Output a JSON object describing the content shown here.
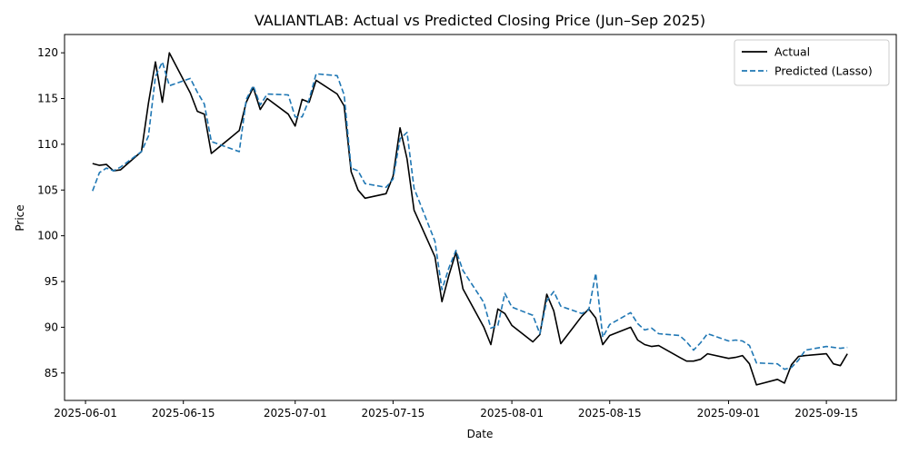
{
  "chart_data": {
    "type": "line",
    "title": "VALIANTLAB: Actual vs Predicted Closing Price (Jun–Sep 2025)",
    "xlabel": "Date",
    "ylabel": "Price",
    "xlim": [
      "2025-05-29",
      "2025-09-25"
    ],
    "ylim": [
      82,
      122
    ],
    "x_ticks": [
      "2025-06-01",
      "2025-06-15",
      "2025-07-01",
      "2025-07-15",
      "2025-08-01",
      "2025-08-15",
      "2025-09-01",
      "2025-09-15"
    ],
    "y_ticks": [
      85,
      90,
      95,
      100,
      105,
      110,
      115,
      120
    ],
    "grid": false,
    "legend": "top-right",
    "series": [
      {
        "name": "Actual",
        "color": "#000000",
        "dash": "solid",
        "x": [
          "2025-06-02",
          "2025-06-03",
          "2025-06-04",
          "2025-06-05",
          "2025-06-06",
          "2025-06-09",
          "2025-06-10",
          "2025-06-11",
          "2025-06-12",
          "2025-06-13",
          "2025-06-16",
          "2025-06-17",
          "2025-06-18",
          "2025-06-19",
          "2025-06-23",
          "2025-06-24",
          "2025-06-25",
          "2025-06-26",
          "2025-06-27",
          "2025-06-30",
          "2025-07-01",
          "2025-07-02",
          "2025-07-03",
          "2025-07-04",
          "2025-07-07",
          "2025-07-08",
          "2025-07-09",
          "2025-07-10",
          "2025-07-11",
          "2025-07-14",
          "2025-07-15",
          "2025-07-16",
          "2025-07-17",
          "2025-07-18",
          "2025-07-21",
          "2025-07-22",
          "2025-07-23",
          "2025-07-24",
          "2025-07-25",
          "2025-07-28",
          "2025-07-29",
          "2025-07-30",
          "2025-07-31",
          "2025-08-01",
          "2025-08-04",
          "2025-08-05",
          "2025-08-06",
          "2025-08-07",
          "2025-08-08",
          "2025-08-11",
          "2025-08-12",
          "2025-08-13",
          "2025-08-14",
          "2025-08-15",
          "2025-08-18",
          "2025-08-19",
          "2025-08-20",
          "2025-08-21",
          "2025-08-22",
          "2025-08-25",
          "2025-08-26",
          "2025-08-27",
          "2025-08-28",
          "2025-08-29",
          "2025-09-01",
          "2025-09-02",
          "2025-09-03",
          "2025-09-04",
          "2025-09-05",
          "2025-09-08",
          "2025-09-09",
          "2025-09-10",
          "2025-09-11",
          "2025-09-12",
          "2025-09-15",
          "2025-09-16",
          "2025-09-17",
          "2025-09-18"
        ],
        "y": [
          107.9,
          107.7,
          107.8,
          107.1,
          107.2,
          109.2,
          114.5,
          119.0,
          114.6,
          120.0,
          115.6,
          113.6,
          113.3,
          109.0,
          111.5,
          114.6,
          116.2,
          113.8,
          115.0,
          113.3,
          112.0,
          114.9,
          114.6,
          117.0,
          115.5,
          114.2,
          107.0,
          105.0,
          104.1,
          104.6,
          106.5,
          111.8,
          108.4,
          102.8,
          97.7,
          92.8,
          95.7,
          98.2,
          94.2,
          90.0,
          88.1,
          92.0,
          91.5,
          90.2,
          88.4,
          89.2,
          93.6,
          91.8,
          88.2,
          91.2,
          92.0,
          91.0,
          88.1,
          89.1,
          90.0,
          88.6,
          88.1,
          87.9,
          88.0,
          86.7,
          86.3,
          86.3,
          86.5,
          87.1,
          86.6,
          86.7,
          86.9,
          86.0,
          83.7,
          84.3,
          83.9,
          85.9,
          86.8,
          86.9,
          87.1,
          86.0,
          85.8,
          87.1
        ]
      },
      {
        "name": "Predicted (Lasso)",
        "color": "#1f77b4",
        "dash": "dashed",
        "x": [
          "2025-06-02",
          "2025-06-03",
          "2025-06-04",
          "2025-06-05",
          "2025-06-06",
          "2025-06-09",
          "2025-06-10",
          "2025-06-11",
          "2025-06-12",
          "2025-06-13",
          "2025-06-16",
          "2025-06-17",
          "2025-06-18",
          "2025-06-19",
          "2025-06-23",
          "2025-06-24",
          "2025-06-25",
          "2025-06-26",
          "2025-06-27",
          "2025-06-30",
          "2025-07-01",
          "2025-07-02",
          "2025-07-03",
          "2025-07-04",
          "2025-07-07",
          "2025-07-08",
          "2025-07-09",
          "2025-07-10",
          "2025-07-11",
          "2025-07-14",
          "2025-07-15",
          "2025-07-16",
          "2025-07-17",
          "2025-07-18",
          "2025-07-21",
          "2025-07-22",
          "2025-07-23",
          "2025-07-24",
          "2025-07-25",
          "2025-07-28",
          "2025-07-29",
          "2025-07-30",
          "2025-07-31",
          "2025-08-01",
          "2025-08-04",
          "2025-08-05",
          "2025-08-06",
          "2025-08-07",
          "2025-08-08",
          "2025-08-11",
          "2025-08-12",
          "2025-08-13",
          "2025-08-14",
          "2025-08-15",
          "2025-08-18",
          "2025-08-19",
          "2025-08-20",
          "2025-08-21",
          "2025-08-22",
          "2025-08-25",
          "2025-08-26",
          "2025-08-27",
          "2025-08-28",
          "2025-08-29",
          "2025-09-01",
          "2025-09-02",
          "2025-09-03",
          "2025-09-04",
          "2025-09-05",
          "2025-09-08",
          "2025-09-09",
          "2025-09-10",
          "2025-09-11",
          "2025-09-12",
          "2025-09-15",
          "2025-09-16",
          "2025-09-17",
          "2025-09-18"
        ],
        "y": [
          104.9,
          106.9,
          107.4,
          107.1,
          107.5,
          109.2,
          110.9,
          117.4,
          119.0,
          116.4,
          117.2,
          115.7,
          114.4,
          110.3,
          109.2,
          114.9,
          116.4,
          114.3,
          115.5,
          115.4,
          113.0,
          113.0,
          114.9,
          117.7,
          117.5,
          115.4,
          107.4,
          107.1,
          105.7,
          105.3,
          106.2,
          110.6,
          111.3,
          105.2,
          99.4,
          94.1,
          96.5,
          98.4,
          96.2,
          92.7,
          89.9,
          90.2,
          93.7,
          92.2,
          91.3,
          89.3,
          92.9,
          93.9,
          92.3,
          91.5,
          91.9,
          95.9,
          88.9,
          90.3,
          91.6,
          90.4,
          89.7,
          89.9,
          89.3,
          89.1,
          88.4,
          87.5,
          88.3,
          89.3,
          88.5,
          88.6,
          88.5,
          88.0,
          86.1,
          86.0,
          85.4,
          85.6,
          86.4,
          87.5,
          87.9,
          87.8,
          87.7,
          87.8
        ]
      }
    ]
  }
}
